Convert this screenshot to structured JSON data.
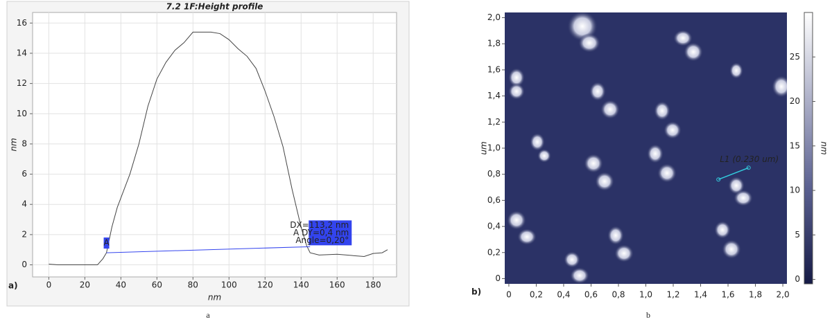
{
  "chart_data": [
    {
      "type": "line",
      "title": "7.2 1F:Height profile",
      "panel_label": "a)",
      "caption": "a",
      "x_label": "nm",
      "y_label": "nm",
      "x": [
        0,
        5,
        10,
        20,
        27,
        30,
        32,
        35,
        38,
        45,
        50,
        55,
        60,
        65,
        70,
        75,
        80,
        85,
        90,
        95,
        100,
        105,
        110,
        115,
        120,
        125,
        130,
        135,
        140,
        143,
        145,
        150,
        160,
        170,
        175,
        180,
        185,
        188
      ],
      "series": [
        {
          "color": "#444444",
          "values": [
            0.05,
            0,
            0,
            0,
            0,
            0.4,
            0.8,
            2.5,
            3.8,
            6,
            8,
            10.5,
            12.3,
            13.4,
            14.2,
            14.7,
            15.4,
            15.4,
            15.4,
            15.3,
            14.9,
            14.3,
            13.8,
            13,
            11.5,
            9.8,
            7.8,
            5,
            2.5,
            1.3,
            0.8,
            0.65,
            0.7,
            0.6,
            0.55,
            0.75,
            0.8,
            1.0
          ]
        }
      ],
      "xlim": [
        -9,
        193
      ],
      "ylim": [
        -0.8,
        16.7
      ],
      "xticks": [
        0,
        20,
        40,
        60,
        80,
        100,
        120,
        140,
        160,
        180
      ],
      "yticks": [
        0,
        2,
        4,
        6,
        8,
        10,
        12,
        14,
        16
      ],
      "grid": true,
      "measure": {
        "x": [
          32,
          145
        ],
        "y": [
          0.8,
          1.2
        ],
        "color": "#3344ee",
        "start_label": "A",
        "box_lines": [
          "DX=113,2 nm",
          "A DY=0,4 nm",
          "Angle=0,20°"
        ]
      }
    },
    {
      "type": "image",
      "panel_label": "b)",
      "caption": "b",
      "y_label": "um",
      "xlim": [
        -0.03,
        2.03
      ],
      "ylim": [
        -0.04,
        2.04
      ],
      "xticks": [
        0,
        {
          "value": 0.2,
          "label": "0,2"
        },
        {
          "value": 0.4,
          "label": "0,4"
        },
        {
          "value": 0.6,
          "label": "0,6"
        },
        {
          "value": 0.8,
          "label": "0,8"
        },
        {
          "value": 1.0,
          "label": "1,0"
        },
        {
          "value": 1.2,
          "label": "1,2"
        },
        {
          "value": 1.4,
          "label": "1,4"
        },
        {
          "value": 1.6,
          "label": "1,6"
        },
        {
          "value": 1.8,
          "label": "1,8"
        },
        {
          "value": 2.0,
          "label": "2,0"
        }
      ],
      "yticks": [
        0,
        {
          "value": 0.2,
          "label": "0,2"
        },
        {
          "value": 0.4,
          "label": "0,4"
        },
        {
          "value": 0.6,
          "label": "0,6"
        },
        {
          "value": 0.8,
          "label": "0,8"
        },
        {
          "value": 1.0,
          "label": "1,0"
        },
        {
          "value": 1.2,
          "label": "1,2"
        },
        {
          "value": 1.4,
          "label": "1,4"
        },
        {
          "value": 1.6,
          "label": "1,6"
        },
        {
          "value": 1.8,
          "label": "1,8"
        },
        {
          "value": 2.0,
          "label": "2,0"
        }
      ],
      "colorbar": {
        "label": "nm",
        "lim": [
          -0.5,
          30
        ],
        "ticks": [
          0,
          5,
          10,
          15,
          20,
          25
        ]
      },
      "line_annotation": {
        "label": "L1 (0.230 um)",
        "x": [
          1.53,
          1.75
        ],
        "y": [
          0.76,
          0.85
        ],
        "color": "#33ccdd"
      }
    }
  ]
}
